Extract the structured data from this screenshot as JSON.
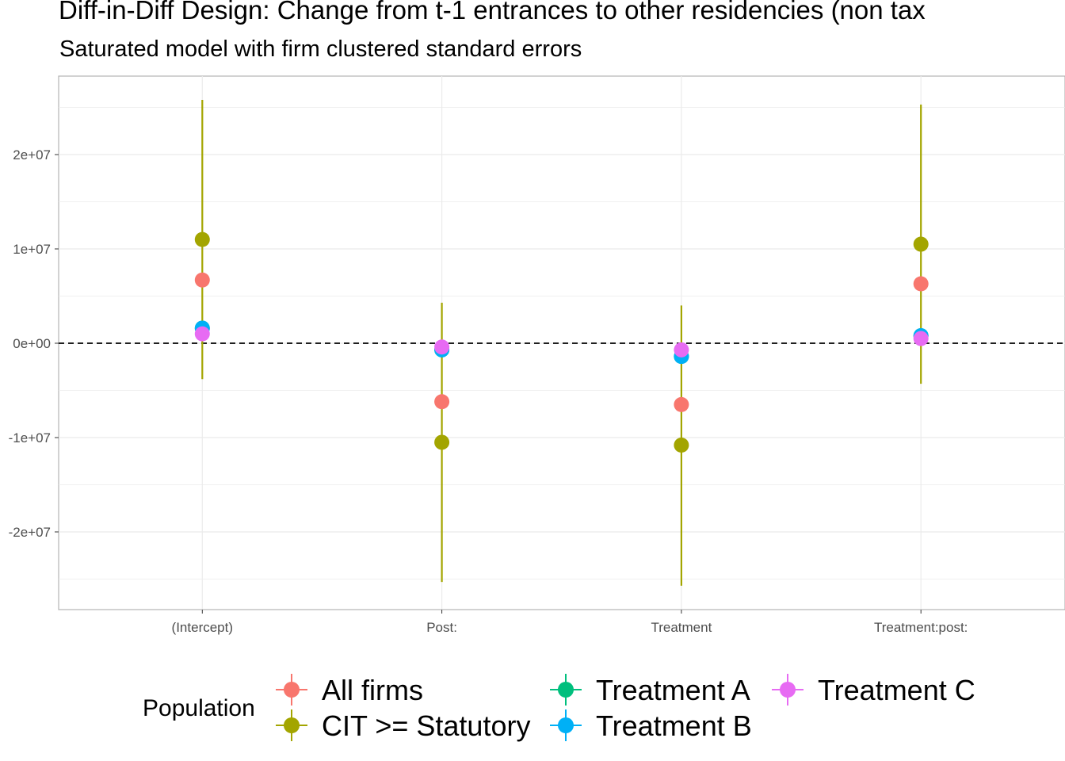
{
  "chart_data": {
    "type": "scatter",
    "title": "Diff-in-Diff Design: Change from t-1 entrances to other residencies (non tax",
    "subtitle": "Saturated model with firm clustered standard errors",
    "xlabel": "",
    "ylabel": "",
    "categories": [
      "(Intercept)",
      "Post:",
      "Treatment",
      "Treatment:post:"
    ],
    "ylim": [
      -28000000,
      28000000
    ],
    "y_ticks": [
      {
        "value": -20000000,
        "label": "-2e+07"
      },
      {
        "value": -10000000,
        "label": "-1e+07"
      },
      {
        "value": 0,
        "label": "0e+00"
      },
      {
        "value": 10000000,
        "label": "1e+07"
      },
      {
        "value": 20000000,
        "label": "2e+07"
      }
    ],
    "reference_line": {
      "value": 0,
      "style": "dashed"
    },
    "legend": {
      "title": "Population",
      "position": "bottom"
    },
    "series": [
      {
        "name": "All firms",
        "color": "#F8766D",
        "values": [
          6700000,
          -6200000,
          -6500000,
          6300000
        ],
        "lower": null,
        "upper": null
      },
      {
        "name": "CIT >= Statutory",
        "color": "#A3A500",
        "values": [
          11000000,
          -10500000,
          -10800000,
          10500000
        ],
        "lower": [
          -3800000,
          -25300000,
          -25700000,
          -4300000
        ],
        "upper": [
          25800000,
          4300000,
          4000000,
          25300000
        ]
      },
      {
        "name": "Treatment A",
        "color": "#00BF7D",
        "values": [
          1600000,
          -700000,
          -1400000,
          800000
        ],
        "lower": null,
        "upper": null
      },
      {
        "name": "Treatment B",
        "color": "#00B0F6",
        "values": [
          1600000,
          -700000,
          -1400000,
          800000
        ],
        "lower": null,
        "upper": null
      },
      {
        "name": "Treatment C",
        "color": "#E76BF3",
        "values": [
          1000000,
          -400000,
          -700000,
          500000
        ],
        "lower": null,
        "upper": null
      }
    ]
  }
}
